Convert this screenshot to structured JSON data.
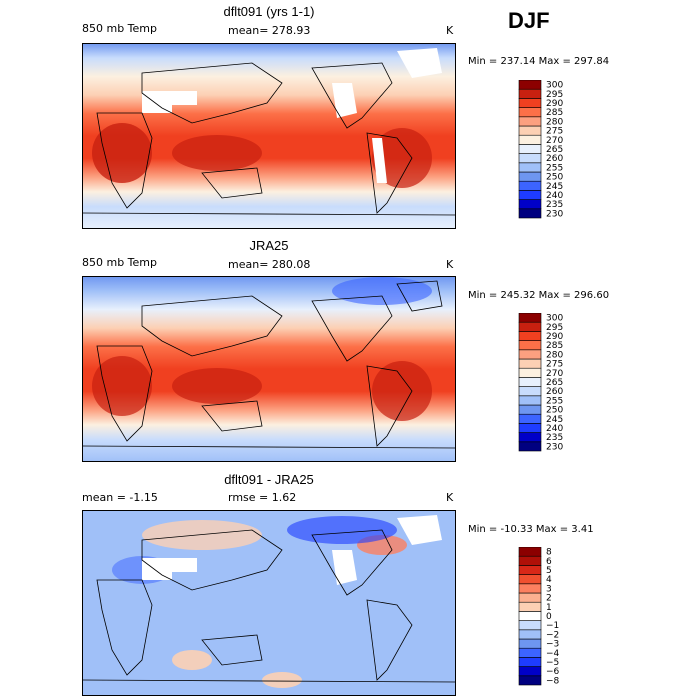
{
  "season": "DJF",
  "panels": [
    {
      "title": "dflt091 (yrs 1-1)",
      "left_label": "850 mb Temp",
      "center_label": "mean= 278.93",
      "units": "K",
      "minmax": "Min = 237.14 Max = 297.84"
    },
    {
      "title": "JRA25",
      "left_label": "850 mb Temp",
      "center_label": "mean= 280.08",
      "units": "K",
      "minmax": "Min = 245.32 Max = 296.60"
    },
    {
      "title": "dflt091 - JRA25",
      "left_label": "mean =   -1.15",
      "center_label": "rmse =   1.62",
      "units": "K",
      "minmax": "Min = -10.33 Max =   3.41"
    }
  ],
  "chart_data": [
    {
      "type": "heatmap",
      "title": "dflt091 (yrs 1-1)",
      "variable": "850 mb Temp",
      "units": "K",
      "mean": 278.93,
      "min": 237.14,
      "max": 297.84,
      "colorbar_levels": [
        "230",
        "235",
        "240",
        "245",
        "250",
        "255",
        "260",
        "265",
        "270",
        "275",
        "280",
        "285",
        "290",
        "295",
        "300"
      ],
      "colorbar_colors": [
        "#000080",
        "#0000c8",
        "#1e3cff",
        "#3c64ff",
        "#6e96f0",
        "#a0c0f8",
        "#c8dcfc",
        "#e8f0fc",
        "#fcf0e0",
        "#fcd0b4",
        "#fca080",
        "#fc7048",
        "#f04020",
        "#c82010",
        "#8c0000"
      ]
    },
    {
      "type": "heatmap",
      "title": "JRA25",
      "variable": "850 mb Temp",
      "units": "K",
      "mean": 280.08,
      "min": 245.32,
      "max": 296.6,
      "colorbar_levels": [
        "230",
        "235",
        "240",
        "245",
        "250",
        "255",
        "260",
        "265",
        "270",
        "275",
        "280",
        "285",
        "290",
        "295",
        "300"
      ],
      "colorbar_colors": [
        "#000080",
        "#0000c8",
        "#1e3cff",
        "#3c64ff",
        "#6e96f0",
        "#a0c0f8",
        "#c8dcfc",
        "#e8f0fc",
        "#fcf0e0",
        "#fcd0b4",
        "#fca080",
        "#fc7048",
        "#f04020",
        "#c82010",
        "#8c0000"
      ]
    },
    {
      "type": "heatmap",
      "title": "dflt091 - JRA25",
      "units": "K",
      "mean": -1.15,
      "rmse": 1.62,
      "min": -10.33,
      "max": 3.41,
      "colorbar_levels": [
        "−8",
        "−6",
        "−5",
        "−4",
        "−3",
        "−2",
        "−1",
        "0",
        "1",
        "2",
        "3",
        "4",
        "5",
        "6",
        "8"
      ],
      "colorbar_colors": [
        "#000080",
        "#0000c8",
        "#1e3cff",
        "#3c64ff",
        "#6e96f0",
        "#a0c0f8",
        "#c8dcfc",
        "#ffffff",
        "#fcd0b4",
        "#fcb090",
        "#fc8060",
        "#f05030",
        "#d82818",
        "#b01008",
        "#8c0000"
      ]
    }
  ]
}
